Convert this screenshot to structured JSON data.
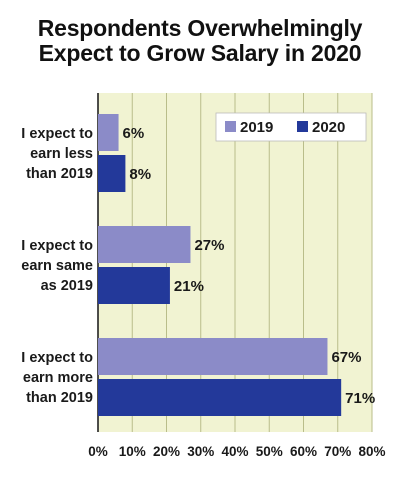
{
  "title_line1": "Respondents Overwhelmingly",
  "title_line2": "Expect to Grow Salary in 2020",
  "colors": {
    "plot_bg": "#f1f3d2",
    "grid": "#b9bd8a",
    "series_2019": "#8b8bc8",
    "series_2020": "#23399a",
    "legend_bg": "#ffffff"
  },
  "chart_data": {
    "type": "bar",
    "orientation": "horizontal",
    "title": "Respondents Overwhelmingly Expect to Grow Salary in 2020",
    "categories": [
      [
        "I expect to",
        "earn less",
        "than 2019"
      ],
      [
        "I expect to",
        "earn same",
        "as 2019"
      ],
      [
        "I expect to",
        "earn more",
        "than 2019"
      ]
    ],
    "series": [
      {
        "name": "2019",
        "values": [
          6,
          27,
          67
        ],
        "labels": [
          "6%",
          "27%",
          "67%"
        ]
      },
      {
        "name": "2020",
        "values": [
          8,
          21,
          71
        ],
        "labels": [
          "8%",
          "21%",
          "71%"
        ]
      }
    ],
    "xlim": [
      0,
      80
    ],
    "xticks": [
      0,
      10,
      20,
      30,
      40,
      50,
      60,
      70,
      80
    ],
    "xtick_labels": [
      "0%",
      "10%",
      "20%",
      "30%",
      "40%",
      "50%",
      "60%",
      "70%",
      "80%"
    ],
    "grid": true,
    "legend_position": "top-right"
  }
}
